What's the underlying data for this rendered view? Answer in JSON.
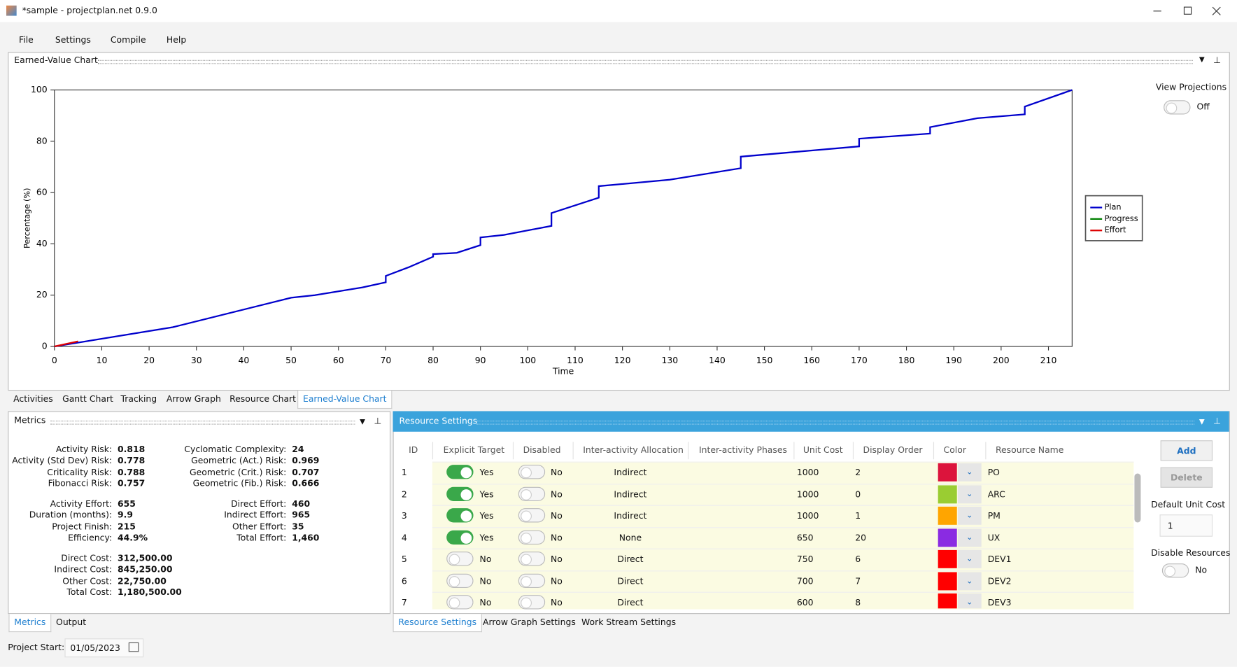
{
  "window": {
    "title": "*sample - projectplan.net 0.9.0"
  },
  "menu": [
    "File",
    "Settings",
    "Compile",
    "Help"
  ],
  "chart_panel": {
    "title": "Earned-Value Chart",
    "view_projections": {
      "label": "View Projections",
      "on": false,
      "state": "Off"
    }
  },
  "chart_data": {
    "type": "line",
    "x_label": "Time",
    "y_label": "Percentage (%)",
    "xlim": [
      0,
      215
    ],
    "xticks": [
      0,
      10,
      20,
      30,
      40,
      50,
      60,
      70,
      80,
      90,
      100,
      110,
      120,
      130,
      140,
      150,
      160,
      170,
      180,
      190,
      200,
      210
    ],
    "ylim": [
      0,
      100
    ],
    "yticks": [
      0,
      20,
      40,
      60,
      80,
      100
    ],
    "grid": false,
    "legend": "right",
    "series": [
      {
        "name": "Plan",
        "color": "#0000cc",
        "x": [
          0,
          25,
          50,
          55,
          65,
          70,
          70,
          75,
          80,
          80,
          85,
          90,
          90,
          95,
          105,
          105,
          115,
          115,
          130,
          145,
          145,
          170,
          170,
          185,
          185,
          195,
          205,
          205,
          215
        ],
        "values": [
          0,
          7.5,
          19,
          20,
          23,
          25,
          27.5,
          31,
          35,
          36,
          36.5,
          39.5,
          42.5,
          43.5,
          47,
          52,
          58,
          62.5,
          65,
          69.5,
          74,
          78,
          81,
          83,
          85.5,
          89,
          90.5,
          93.5,
          100
        ]
      },
      {
        "name": "Progress",
        "color": "#008000",
        "x": [],
        "values": []
      },
      {
        "name": "Effort",
        "color": "#dd0000",
        "x": [
          0,
          5
        ],
        "values": [
          0,
          2
        ]
      }
    ]
  },
  "view_tabs": {
    "items": [
      "Activities",
      "Gantt Chart",
      "Tracking",
      "Arrow Graph",
      "Resource Chart",
      "Earned-Value Chart"
    ],
    "selected": 5
  },
  "metrics": {
    "title": "Metrics",
    "column1": [
      {
        "label": "Activity Risk:",
        "value": "0.818"
      },
      {
        "label": "Activity (Std Dev) Risk:",
        "value": "0.778"
      },
      {
        "label": "Criticality Risk:",
        "value": "0.788"
      },
      {
        "label": "Fibonacci Risk:",
        "value": "0.757"
      },
      {
        "label": "Activity Effort:",
        "value": "655"
      },
      {
        "label": "Duration (months):",
        "value": "9.9"
      },
      {
        "label": "Project Finish:",
        "value": "215"
      },
      {
        "label": "Efficiency:",
        "value": "44.9%"
      },
      {
        "label": "Direct Cost:",
        "value": "312,500.00"
      },
      {
        "label": "Indirect Cost:",
        "value": "845,250.00"
      },
      {
        "label": "Other Cost:",
        "value": "22,750.00"
      },
      {
        "label": "Total Cost:",
        "value": "1,180,500.00"
      }
    ],
    "column2": [
      {
        "label": "Cyclomatic Complexity:",
        "value": "24"
      },
      {
        "label": "Geometric (Act.) Risk:",
        "value": "0.969"
      },
      {
        "label": "Geometric (Crit.) Risk:",
        "value": "0.707"
      },
      {
        "label": "Geometric (Fib.) Risk:",
        "value": "0.666"
      },
      {
        "label": "Direct Effort:",
        "value": "460"
      },
      {
        "label": "Indirect Effort:",
        "value": "965"
      },
      {
        "label": "Other Effort:",
        "value": "35"
      },
      {
        "label": "Total Effort:",
        "value": "1,460"
      }
    ]
  },
  "metrics_tabs": {
    "items": [
      "Metrics",
      "Output"
    ],
    "selected": 0
  },
  "project_start": {
    "label": "Project Start:",
    "value": "01/05/2023"
  },
  "resource_settings": {
    "title": "Resource Settings",
    "columns": [
      "ID",
      "Explicit Target",
      "Disabled",
      "Inter-activity Allocation",
      "Inter-activity Phases",
      "Unit Cost",
      "Display Order",
      "Color",
      "Resource Name"
    ],
    "rows": [
      {
        "id": "1",
        "explicit_target": {
          "on": true,
          "label": "Yes"
        },
        "disabled": {
          "on": false,
          "label": "No"
        },
        "allocation": "Indirect",
        "unit_cost": "1000",
        "display_order": "2",
        "color": "#dc143c",
        "name": "PO"
      },
      {
        "id": "2",
        "explicit_target": {
          "on": true,
          "label": "Yes"
        },
        "disabled": {
          "on": false,
          "label": "No"
        },
        "allocation": "Indirect",
        "unit_cost": "1000",
        "display_order": "0",
        "color": "#9acd32",
        "name": "ARC"
      },
      {
        "id": "3",
        "explicit_target": {
          "on": true,
          "label": "Yes"
        },
        "disabled": {
          "on": false,
          "label": "No"
        },
        "allocation": "Indirect",
        "unit_cost": "1000",
        "display_order": "1",
        "color": "#ffa500",
        "name": "PM"
      },
      {
        "id": "4",
        "explicit_target": {
          "on": true,
          "label": "Yes"
        },
        "disabled": {
          "on": false,
          "label": "No"
        },
        "allocation": "None",
        "unit_cost": "650",
        "display_order": "20",
        "color": "#8a2be2",
        "name": "UX"
      },
      {
        "id": "5",
        "explicit_target": {
          "on": false,
          "label": "No"
        },
        "disabled": {
          "on": false,
          "label": "No"
        },
        "allocation": "Direct",
        "unit_cost": "750",
        "display_order": "6",
        "color": "#ff0000",
        "name": "DEV1"
      },
      {
        "id": "6",
        "explicit_target": {
          "on": false,
          "label": "No"
        },
        "disabled": {
          "on": false,
          "label": "No"
        },
        "allocation": "Direct",
        "unit_cost": "700",
        "display_order": "7",
        "color": "#ff0000",
        "name": "DEV2"
      },
      {
        "id": "7",
        "explicit_target": {
          "on": false,
          "label": "No"
        },
        "disabled": {
          "on": false,
          "label": "No"
        },
        "allocation": "Direct",
        "unit_cost": "600",
        "display_order": "8",
        "color": "#ff0000",
        "name": "DEV3"
      }
    ],
    "add_button": "Add",
    "delete_button": "Delete",
    "default_unit_cost": {
      "label": "Default Unit Cost",
      "value": "1"
    },
    "disable_resources": {
      "label": "Disable Resources",
      "on": false,
      "state": "No"
    }
  },
  "settings_tabs": {
    "items": [
      "Resource Settings",
      "Arrow Graph Settings",
      "Work Stream Settings"
    ],
    "selected": 0
  }
}
